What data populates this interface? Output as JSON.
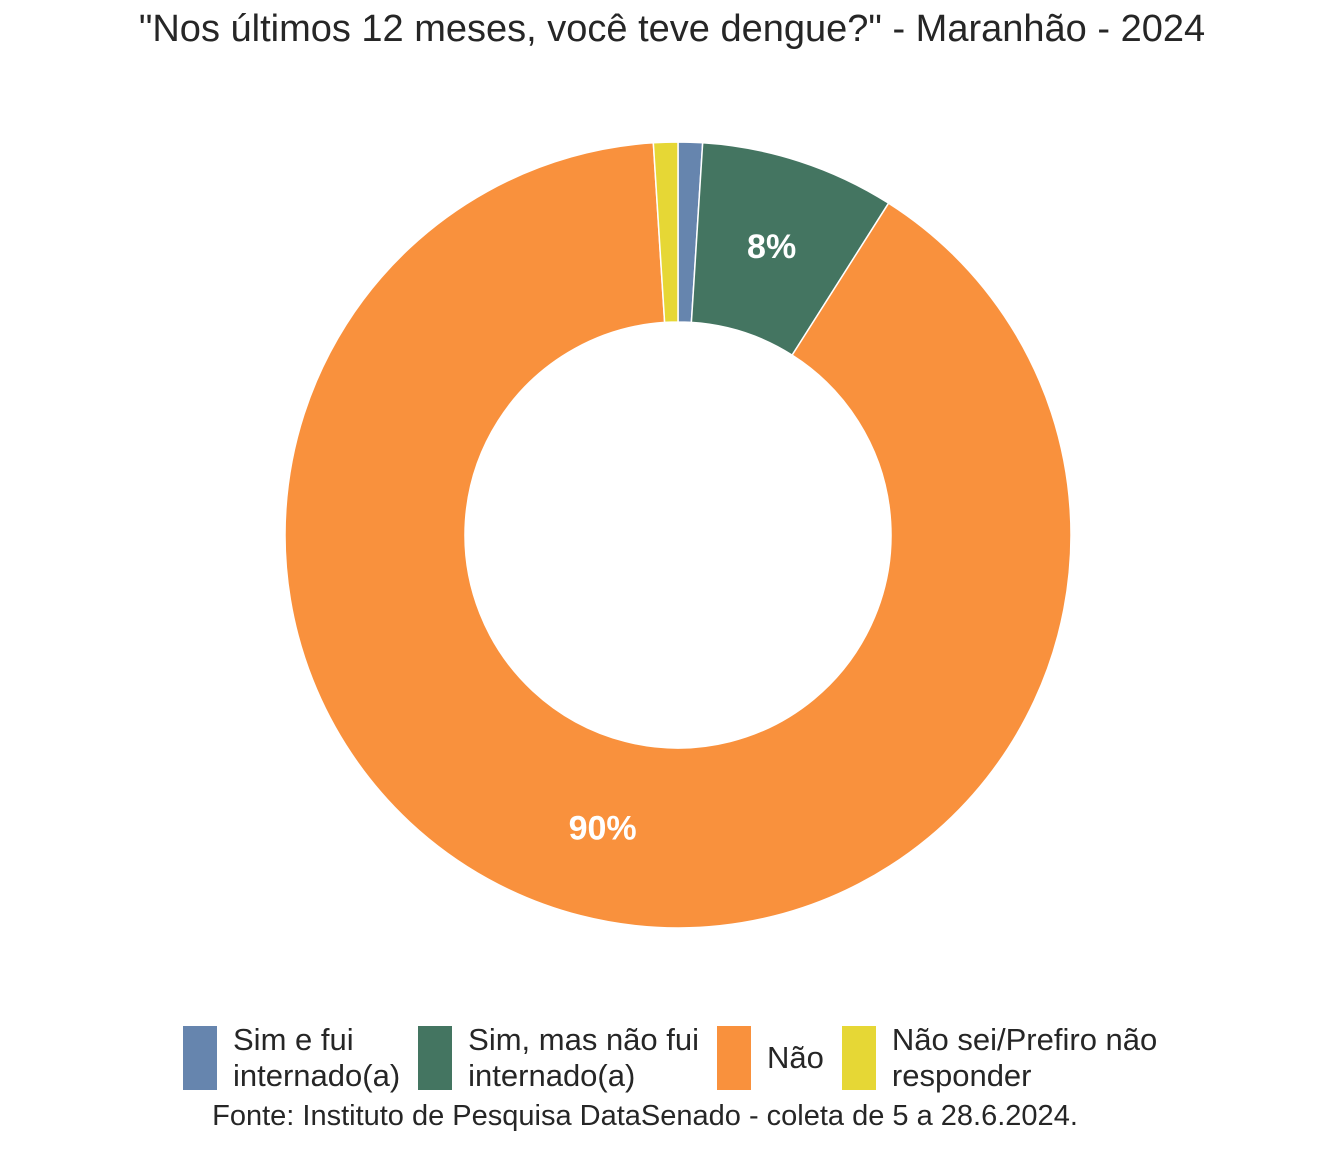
{
  "chart_data": {
    "type": "pie",
    "donut": true,
    "title": "\"Nos últimos 12 meses, você teve dengue?\" - Maranhão - 2024",
    "categories": [
      "Sim e fui internado(a)",
      "Sim, mas não fui internado(a)",
      "Não",
      "Não sei/Prefiro não responder"
    ],
    "values": [
      1,
      8,
      90,
      1
    ],
    "data_labels": [
      "",
      "8%",
      "90%",
      ""
    ],
    "colors": [
      "#6685AE",
      "#447561",
      "#F9913D",
      "#E6D735"
    ],
    "legend_position": "bottom",
    "source": "Fonte: Instituto de Pesquisa DataSenado - coleta de 5 a 28.6.2024."
  },
  "legend": {
    "items": [
      {
        "label": "Sim e fui\ninternado(a)",
        "color": "#6685AE"
      },
      {
        "label": "Sim, mas não fui\ninternado(a)",
        "color": "#447561"
      },
      {
        "label": "Não",
        "color": "#F9913D"
      },
      {
        "label": "Não sei/Prefiro não\nresponder",
        "color": "#E6D735"
      }
    ]
  }
}
